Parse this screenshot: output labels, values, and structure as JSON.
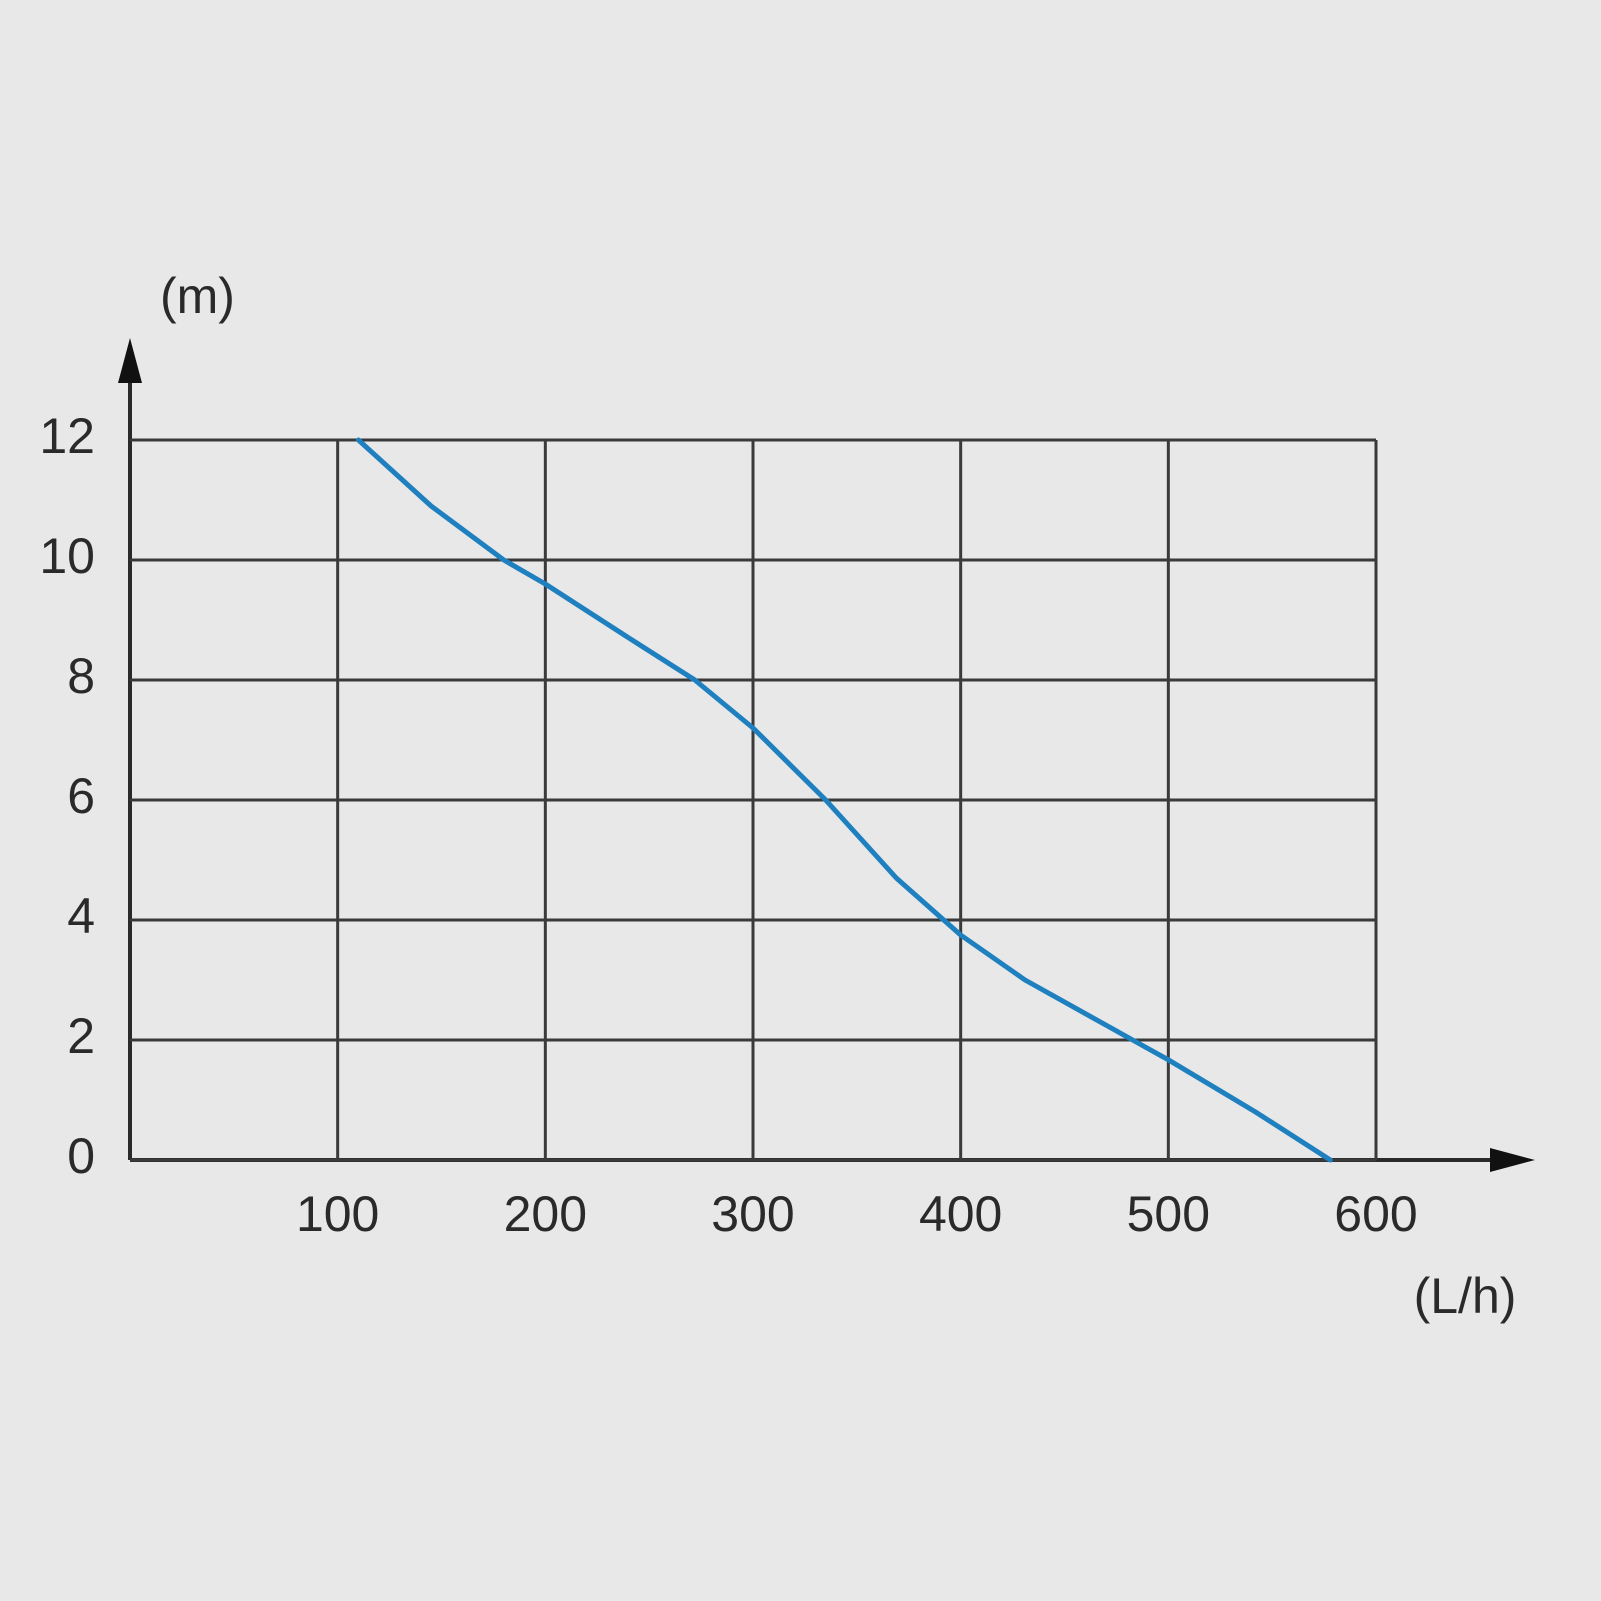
{
  "chart_data": {
    "type": "line",
    "x_label": "(L/h)",
    "y_label": "(m)",
    "x": [
      110,
      145,
      180,
      200,
      238,
      272,
      300,
      335,
      369,
      400,
      431,
      488,
      500,
      542,
      578
    ],
    "series": [
      {
        "color": "#1f80c0",
        "values": [
          12,
          10.9,
          10,
          9.6,
          8.75,
          8,
          7.2,
          6,
          4.7,
          3.75,
          3,
          1.9,
          1.67,
          0.8,
          0
        ]
      }
    ],
    "xlim": [
      0,
      600
    ],
    "ylim": [
      0,
      12
    ],
    "xticks": [
      100,
      200,
      300,
      400,
      500,
      600
    ],
    "yticks": [
      0,
      2,
      4,
      6,
      8,
      10,
      12
    ],
    "grid": true
  }
}
